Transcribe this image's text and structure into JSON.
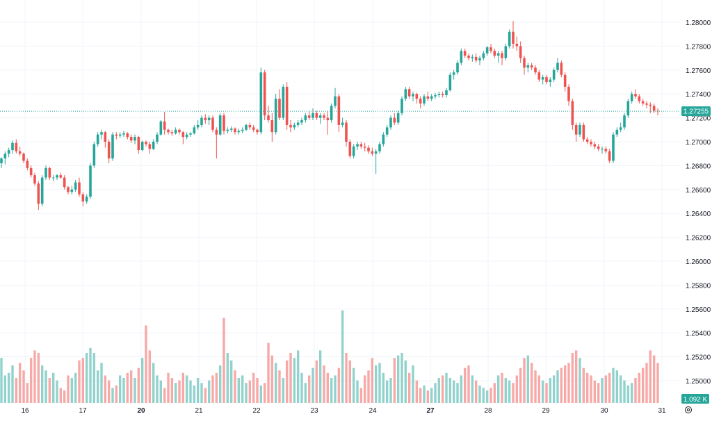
{
  "chart_data": {
    "type": "candlestick",
    "colors": {
      "up": "#26a69a",
      "down": "#ef5350",
      "up_volume": "#92d2cc",
      "down_volume": "#f7a9a7",
      "grid": "#f0f3fa",
      "axis_text": "#131722",
      "last_price_bg": "#26a69a"
    },
    "price_axis": {
      "ticks": [
        "1.28000",
        "1.27800",
        "1.27600",
        "1.27400",
        "1.27200",
        "1.27000",
        "1.26800",
        "1.26600",
        "1.26400",
        "1.26200",
        "1.26000",
        "1.25800",
        "1.25600",
        "1.25400",
        "1.25200",
        "1.25000"
      ],
      "range": [
        1.24807,
        1.28193
      ]
    },
    "time_axis": {
      "labels": [
        "16",
        "17",
        "20",
        "21",
        "22",
        "23",
        "24",
        "27",
        "28",
        "29",
        "30",
        "31"
      ],
      "bold_labels": [
        "20",
        "27"
      ]
    },
    "last_price": "1.27255",
    "last_volume": "1.092 K",
    "candles": [
      [
        1.2682,
        1.2687,
        1.2678,
        1.2686
      ],
      [
        1.2686,
        1.2692,
        1.2681,
        1.269
      ],
      [
        1.269,
        1.2695,
        1.2687,
        1.2693
      ],
      [
        1.2693,
        1.2701,
        1.269,
        1.2699
      ],
      [
        1.2699,
        1.2702,
        1.269,
        1.2692
      ],
      [
        1.2692,
        1.2696,
        1.2688,
        1.269
      ],
      [
        1.269,
        1.2691,
        1.2682,
        1.2684
      ],
      [
        1.2684,
        1.2686,
        1.2676,
        1.2678
      ],
      [
        1.2678,
        1.268,
        1.267,
        1.2672
      ],
      [
        1.2672,
        1.2674,
        1.2663,
        1.2665
      ],
      [
        1.2665,
        1.2667,
        1.2643,
        1.2648
      ],
      [
        1.2648,
        1.2672,
        1.2646,
        1.267
      ],
      [
        1.267,
        1.268,
        1.2668,
        1.2678
      ],
      [
        1.2678,
        1.2679,
        1.2668,
        1.267
      ],
      [
        1.267,
        1.2672,
        1.2667,
        1.267
      ],
      [
        1.267,
        1.2673,
        1.2668,
        1.2672
      ],
      [
        1.2672,
        1.2674,
        1.2669,
        1.267
      ],
      [
        1.267,
        1.2672,
        1.266,
        1.2662
      ],
      [
        1.2662,
        1.2663,
        1.2656,
        1.2658
      ],
      [
        1.2658,
        1.2663,
        1.2656,
        1.266
      ],
      [
        1.266,
        1.2668,
        1.2658,
        1.2666
      ],
      [
        1.2666,
        1.267,
        1.2654,
        1.2656
      ],
      [
        1.2656,
        1.2658,
        1.2646,
        1.265
      ],
      [
        1.265,
        1.2656,
        1.2648,
        1.2654
      ],
      [
        1.2654,
        1.2682,
        1.2652,
        1.268
      ],
      [
        1.268,
        1.27,
        1.2678,
        1.2698
      ],
      [
        1.2698,
        1.2708,
        1.2696,
        1.2706
      ],
      [
        1.2706,
        1.271,
        1.2702,
        1.2708
      ],
      [
        1.2708,
        1.2709,
        1.2695,
        1.27
      ],
      [
        1.27,
        1.2702,
        1.2682,
        1.2686
      ],
      [
        1.2686,
        1.2708,
        1.2684,
        1.2706
      ],
      [
        1.2706,
        1.2708,
        1.2702,
        1.2705
      ],
      [
        1.2705,
        1.2708,
        1.2703,
        1.2706
      ],
      [
        1.2706,
        1.2709,
        1.2704,
        1.2707
      ],
      [
        1.2707,
        1.2708,
        1.2702,
        1.2704
      ],
      [
        1.2704,
        1.2706,
        1.2699,
        1.2701
      ],
      [
        1.2701,
        1.2706,
        1.2698,
        1.2704
      ],
      [
        1.2704,
        1.2705,
        1.269,
        1.2693
      ],
      [
        1.2693,
        1.2701,
        1.2692,
        1.27
      ],
      [
        1.27,
        1.2701,
        1.2696,
        1.2698
      ],
      [
        1.2698,
        1.27,
        1.269,
        1.2694
      ],
      [
        1.2694,
        1.2702,
        1.2693,
        1.27
      ],
      [
        1.27,
        1.2708,
        1.2698,
        1.2706
      ],
      [
        1.2706,
        1.2718,
        1.2705,
        1.2717
      ],
      [
        1.2717,
        1.2725,
        1.2706,
        1.271
      ],
      [
        1.271,
        1.2711,
        1.2706,
        1.2708
      ],
      [
        1.2708,
        1.271,
        1.2705,
        1.2707
      ],
      [
        1.2707,
        1.2712,
        1.2706,
        1.271
      ],
      [
        1.271,
        1.2711,
        1.2706,
        1.2708
      ],
      [
        1.2708,
        1.2709,
        1.2698,
        1.2704
      ],
      [
        1.2704,
        1.2708,
        1.2702,
        1.2706
      ],
      [
        1.2706,
        1.2708,
        1.2704,
        1.2707
      ],
      [
        1.2707,
        1.2714,
        1.2706,
        1.2712
      ],
      [
        1.2712,
        1.2718,
        1.271,
        1.2714
      ],
      [
        1.2714,
        1.2722,
        1.2712,
        1.272
      ],
      [
        1.272,
        1.2723,
        1.2715,
        1.2718
      ],
      [
        1.2718,
        1.2722,
        1.2714,
        1.272
      ],
      [
        1.272,
        1.2722,
        1.2708,
        1.271
      ],
      [
        1.271,
        1.2712,
        1.2686,
        1.2706
      ],
      [
        1.2706,
        1.2724,
        1.2705,
        1.2722
      ],
      [
        1.2722,
        1.2724,
        1.2706,
        1.2709
      ],
      [
        1.2709,
        1.2712,
        1.2707,
        1.271
      ],
      [
        1.271,
        1.2713,
        1.2708,
        1.2711
      ],
      [
        1.2711,
        1.2712,
        1.2706,
        1.2708
      ],
      [
        1.2708,
        1.2711,
        1.2706,
        1.2709
      ],
      [
        1.2709,
        1.2712,
        1.2707,
        1.271
      ],
      [
        1.271,
        1.2715,
        1.2709,
        1.2714
      ],
      [
        1.2714,
        1.2716,
        1.271,
        1.2712
      ],
      [
        1.2712,
        1.2714,
        1.2708,
        1.271
      ],
      [
        1.271,
        1.2711,
        1.2706,
        1.2708
      ],
      [
        1.2708,
        1.2762,
        1.2706,
        1.2758
      ],
      [
        1.2758,
        1.276,
        1.2718,
        1.2722
      ],
      [
        1.2722,
        1.273,
        1.2716,
        1.2718
      ],
      [
        1.2718,
        1.2724,
        1.27,
        1.2708
      ],
      [
        1.2708,
        1.274,
        1.2706,
        1.2736
      ],
      [
        1.2736,
        1.2744,
        1.2718,
        1.272
      ],
      [
        1.272,
        1.2748,
        1.2718,
        1.2746
      ],
      [
        1.2746,
        1.275,
        1.271,
        1.2714
      ],
      [
        1.2714,
        1.2718,
        1.2708,
        1.2712
      ],
      [
        1.2712,
        1.2716,
        1.271,
        1.2714
      ],
      [
        1.2714,
        1.2718,
        1.2712,
        1.2716
      ],
      [
        1.2716,
        1.272,
        1.2714,
        1.2718
      ],
      [
        1.2718,
        1.2724,
        1.2716,
        1.2722
      ],
      [
        1.2722,
        1.2726,
        1.2718,
        1.272
      ],
      [
        1.272,
        1.2728,
        1.2718,
        1.2724
      ],
      [
        1.2724,
        1.2726,
        1.2718,
        1.272
      ],
      [
        1.272,
        1.2724,
        1.2715,
        1.2722
      ],
      [
        1.2722,
        1.2724,
        1.2718,
        1.272
      ],
      [
        1.272,
        1.2726,
        1.2706,
        1.2718
      ],
      [
        1.2718,
        1.2732,
        1.2716,
        1.273
      ],
      [
        1.273,
        1.2745,
        1.2728,
        1.2738
      ],
      [
        1.2738,
        1.274,
        1.2708,
        1.2714
      ],
      [
        1.2714,
        1.272,
        1.2712,
        1.2716
      ],
      [
        1.2716,
        1.2718,
        1.2696,
        1.27
      ],
      [
        1.27,
        1.2702,
        1.2686,
        1.2688
      ],
      [
        1.2688,
        1.2698,
        1.2686,
        1.2696
      ],
      [
        1.2696,
        1.27,
        1.2693,
        1.2698
      ],
      [
        1.2698,
        1.27,
        1.2694,
        1.2696
      ],
      [
        1.2696,
        1.2699,
        1.2692,
        1.2695
      ],
      [
        1.2695,
        1.2697,
        1.269,
        1.2692
      ],
      [
        1.2692,
        1.2695,
        1.2688,
        1.269
      ],
      [
        1.269,
        1.2694,
        1.2673,
        1.2692
      ],
      [
        1.2692,
        1.27,
        1.269,
        1.2698
      ],
      [
        1.2698,
        1.2708,
        1.2696,
        1.2706
      ],
      [
        1.2706,
        1.2714,
        1.2704,
        1.2712
      ],
      [
        1.2712,
        1.2722,
        1.271,
        1.272
      ],
      [
        1.272,
        1.2724,
        1.2714,
        1.2716
      ],
      [
        1.2716,
        1.2726,
        1.2714,
        1.2724
      ],
      [
        1.2724,
        1.2738,
        1.2722,
        1.2736
      ],
      [
        1.2736,
        1.2746,
        1.2734,
        1.2744
      ],
      [
        1.2744,
        1.2746,
        1.2736,
        1.2738
      ],
      [
        1.2738,
        1.2742,
        1.2734,
        1.274
      ],
      [
        1.274,
        1.2741,
        1.2732,
        1.2736
      ],
      [
        1.2736,
        1.2738,
        1.2728,
        1.2732
      ],
      [
        1.2732,
        1.274,
        1.273,
        1.2738
      ],
      [
        1.2738,
        1.2742,
        1.2734,
        1.2736
      ],
      [
        1.2736,
        1.274,
        1.2734,
        1.2738
      ],
      [
        1.2738,
        1.2741,
        1.2736,
        1.2739
      ],
      [
        1.2739,
        1.2742,
        1.2737,
        1.274
      ],
      [
        1.274,
        1.2742,
        1.2737,
        1.2739
      ],
      [
        1.2739,
        1.2745,
        1.2737,
        1.2743
      ],
      [
        1.2743,
        1.2758,
        1.2742,
        1.2756
      ],
      [
        1.2756,
        1.276,
        1.2752,
        1.2758
      ],
      [
        1.2758,
        1.2768,
        1.2756,
        1.2766
      ],
      [
        1.2766,
        1.2778,
        1.2764,
        1.2776
      ],
      [
        1.2776,
        1.2778,
        1.277,
        1.2772
      ],
      [
        1.2772,
        1.2774,
        1.2768,
        1.277
      ],
      [
        1.277,
        1.2773,
        1.2767,
        1.2771
      ],
      [
        1.2771,
        1.2774,
        1.2766,
        1.2768
      ],
      [
        1.2768,
        1.2772,
        1.2764,
        1.277
      ],
      [
        1.277,
        1.2776,
        1.2768,
        1.2774
      ],
      [
        1.2774,
        1.278,
        1.2772,
        1.2779
      ],
      [
        1.2779,
        1.2782,
        1.2774,
        1.2776
      ],
      [
        1.2776,
        1.2778,
        1.277,
        1.2772
      ],
      [
        1.2772,
        1.2776,
        1.2766,
        1.2774
      ],
      [
        1.2774,
        1.2776,
        1.2764,
        1.277
      ],
      [
        1.277,
        1.2782,
        1.2768,
        1.278
      ],
      [
        1.278,
        1.2794,
        1.2778,
        1.2792
      ],
      [
        1.2792,
        1.2801,
        1.2778,
        1.2782
      ],
      [
        1.2782,
        1.2788,
        1.2776,
        1.278
      ],
      [
        1.278,
        1.2784,
        1.2766,
        1.277
      ],
      [
        1.277,
        1.2772,
        1.2756,
        1.2762
      ],
      [
        1.2762,
        1.2766,
        1.2758,
        1.2764
      ],
      [
        1.2764,
        1.2766,
        1.276,
        1.2762
      ],
      [
        1.2762,
        1.2764,
        1.2756,
        1.2758
      ],
      [
        1.2758,
        1.276,
        1.275,
        1.2752
      ],
      [
        1.2752,
        1.2756,
        1.2748,
        1.2754
      ],
      [
        1.2754,
        1.2756,
        1.2748,
        1.275
      ],
      [
        1.275,
        1.2754,
        1.2746,
        1.2752
      ],
      [
        1.2752,
        1.2762,
        1.275,
        1.276
      ],
      [
        1.276,
        1.277,
        1.2758,
        1.2766
      ],
      [
        1.2766,
        1.2768,
        1.2754,
        1.2756
      ],
      [
        1.2756,
        1.2758,
        1.2742,
        1.2746
      ],
      [
        1.2746,
        1.2748,
        1.273,
        1.2734
      ],
      [
        1.2734,
        1.2736,
        1.271,
        1.2714
      ],
      [
        1.2714,
        1.2716,
        1.27,
        1.2706
      ],
      [
        1.2706,
        1.2716,
        1.2704,
        1.2714
      ],
      [
        1.2714,
        1.2716,
        1.27,
        1.2702
      ],
      [
        1.2702,
        1.2704,
        1.2698,
        1.27
      ],
      [
        1.27,
        1.2702,
        1.2696,
        1.2698
      ],
      [
        1.2698,
        1.27,
        1.2694,
        1.2696
      ],
      [
        1.2696,
        1.2698,
        1.2692,
        1.2694
      ],
      [
        1.2694,
        1.2696,
        1.269,
        1.2694
      ],
      [
        1.2694,
        1.2696,
        1.269,
        1.2692
      ],
      [
        1.2692,
        1.2694,
        1.2682,
        1.2684
      ],
      [
        1.2684,
        1.2708,
        1.2682,
        1.2706
      ],
      [
        1.2706,
        1.2712,
        1.2704,
        1.271
      ],
      [
        1.271,
        1.2716,
        1.2708,
        1.2712
      ],
      [
        1.2712,
        1.2724,
        1.271,
        1.2722
      ],
      [
        1.2722,
        1.2736,
        1.272,
        1.2734
      ],
      [
        1.2734,
        1.2742,
        1.2732,
        1.274
      ],
      [
        1.274,
        1.2744,
        1.2736,
        1.2738
      ],
      [
        1.2738,
        1.274,
        1.2732,
        1.2734
      ],
      [
        1.2734,
        1.2736,
        1.273,
        1.2732
      ],
      [
        1.2732,
        1.2734,
        1.2728,
        1.2731
      ],
      [
        1.2731,
        1.2733,
        1.2724,
        1.273
      ],
      [
        1.273,
        1.2732,
        1.2724,
        1.2726
      ],
      [
        1.2726,
        1.2728,
        1.2722,
        1.27255
      ]
    ],
    "volumes": [
      0.9,
      0.55,
      0.6,
      0.75,
      0.5,
      0.8,
      0.65,
      0.4,
      0.9,
      1.05,
      1.0,
      0.75,
      0.65,
      0.5,
      0.6,
      0.45,
      0.3,
      0.25,
      0.55,
      0.5,
      0.6,
      0.85,
      0.9,
      1.0,
      1.1,
      1.0,
      0.65,
      0.8,
      0.55,
      0.45,
      0.3,
      0.35,
      0.55,
      0.5,
      0.6,
      0.65,
      0.5,
      0.7,
      0.9,
      1.55,
      1.05,
      0.8,
      0.55,
      0.45,
      0.3,
      0.6,
      0.5,
      0.4,
      0.45,
      0.6,
      0.55,
      0.45,
      0.35,
      0.5,
      0.4,
      0.3,
      0.45,
      0.55,
      0.6,
      0.75,
      1.7,
      1.0,
      0.85,
      0.65,
      0.5,
      0.55,
      0.4,
      0.45,
      0.6,
      0.5,
      0.35,
      0.4,
      1.2,
      0.95,
      0.8,
      0.65,
      0.5,
      0.85,
      1.0,
      0.9,
      1.05,
      0.6,
      0.4,
      0.55,
      0.7,
      0.85,
      1.05,
      0.75,
      0.6,
      0.5,
      0.55,
      0.7,
      1.85,
      1.0,
      0.85,
      0.7,
      0.45,
      0.3,
      0.55,
      0.65,
      0.9,
      0.75,
      0.8,
      0.6,
      0.45,
      0.5,
      0.9,
      0.95,
      1.0,
      0.85,
      0.6,
      0.75,
      0.45,
      0.3,
      0.35,
      0.25,
      0.3,
      0.4,
      0.5,
      0.55,
      0.6,
      0.5,
      0.45,
      0.4,
      0.55,
      0.7,
      0.75,
      0.55,
      0.45,
      0.35,
      0.3,
      0.25,
      0.3,
      0.4,
      0.55,
      0.6,
      0.5,
      0.45,
      0.4,
      0.55,
      0.7,
      0.9,
      0.95,
      0.8,
      0.65,
      0.55,
      0.45,
      0.4,
      0.5,
      0.55,
      0.65,
      0.7,
      0.75,
      0.8,
      1.0,
      1.05,
      0.9,
      0.7,
      0.6,
      0.55,
      0.45,
      0.4,
      0.5,
      0.55,
      0.6,
      0.7,
      0.65,
      0.55,
      0.45,
      0.35,
      0.4,
      0.5,
      0.6,
      0.7,
      0.8,
      1.05,
      0.95,
      0.8,
      0.6,
      0.5,
      0.45,
      0.4,
      0.3,
      0.25,
      0.2,
      0.25
    ]
  }
}
